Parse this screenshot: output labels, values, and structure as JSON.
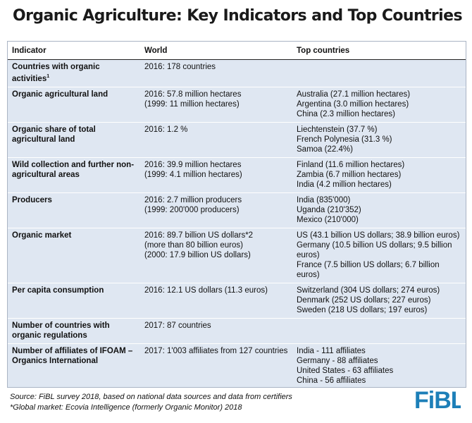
{
  "title": "Organic Agriculture: Key Indicators and Top Countries",
  "table": {
    "headers": [
      "Indicator",
      "World",
      "Top countries"
    ],
    "rows": [
      {
        "indicator": "Countries with organic activities",
        "indicator_sup": "1",
        "world": [
          "2016: 178 countries"
        ],
        "top": []
      },
      {
        "indicator": "Organic agricultural land",
        "world": [
          "2016: 57.8 million hectares",
          "(1999: 11 million hectares)"
        ],
        "top": [
          "Australia (27.1 million hectares)",
          "Argentina (3.0 million hectares)",
          "China (2.3 million hectares)"
        ]
      },
      {
        "indicator": "Organic share of total agricultural land",
        "world": [
          "2016: 1.2 %"
        ],
        "top": [
          "Liechtenstein (37.7 %)",
          "French Polynesia (31.3 %)",
          "Samoa (22.4%)"
        ]
      },
      {
        "indicator": "Wild collection and further non-agricultural areas",
        "world": [
          "2016: 39.9 million hectares",
          "(1999: 4.1 million hectares)"
        ],
        "top": [
          "Finland (11.6 million hectares)",
          "Zambia (6.7 million hectares)",
          "India (4.2 million hectares)"
        ]
      },
      {
        "indicator": "Producers",
        "world": [
          "2016: 2.7 million producers",
          "(1999: 200'000 producers)"
        ],
        "top": [
          "India (835'000)",
          "Uganda (210'352)",
          "Mexico (210'000)"
        ]
      },
      {
        "indicator": "Organic market",
        "world": [
          "2016: 89.7 billion US dollars*2",
          "(more than 80 billion euros)",
          "(2000: 17.9 billion US dollars)"
        ],
        "top": [
          "US (43.1 billion US dollars; 38.9 billion euros)",
          "Germany (10.5 billion US dollars; 9.5 billion euros)",
          "France (7.5 billion US dollars; 6.7 billion euros)"
        ]
      },
      {
        "indicator": "Per capita consumption",
        "world": [
          "2016: 12.1 US dollars (11.3 euros)"
        ],
        "top": [
          "Switzerland (304 US dollars; 274 euros)",
          "Denmark (252 US dollars; 227 euros)",
          "Sweden (218 US dollars; 197 euros)"
        ]
      },
      {
        "indicator": "Number of countries with organic regulations",
        "world": [
          "2017: 87 countries"
        ],
        "top": []
      },
      {
        "indicator": "Number of affiliates of IFOAM – Organics International",
        "world": [
          "2017: 1'003 affiliates from 127 countries"
        ],
        "top": [
          "India - 111 affiliates",
          "Germany - 88 affiliates",
          "United States - 63 affiliates",
          "China - 56 affiliates"
        ]
      }
    ]
  },
  "footer": {
    "source": "Source: FiBL survey 2018, based on national data sources and data from certifiers",
    "note": "*Global market: Ecovia Intelligence (formerly Organic Monitor) 2018"
  },
  "logo": {
    "text": "FiBL",
    "color": "#1d7fb8"
  }
}
